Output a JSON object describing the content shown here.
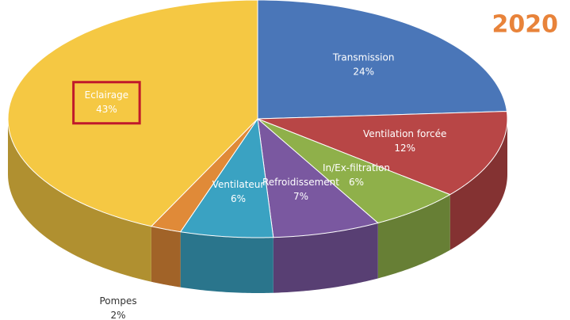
{
  "chart_data": {
    "type": "pie",
    "title": "2020",
    "categories": [
      "Transmission",
      "Ventilation forcée",
      "In/Ex-filtration",
      "Refroidissement",
      "Ventilateur",
      "Pompes",
      "Eclairage"
    ],
    "values": [
      24,
      12,
      6,
      7,
      6,
      2,
      43
    ],
    "value_labels": [
      "24%",
      "12%",
      "6%",
      "7%",
      "6%",
      "2%",
      "43%"
    ],
    "colors": [
      "#4a76b8",
      "#b84646",
      "#8fb04a",
      "#7a58a0",
      "#3aa2c2",
      "#e08a38",
      "#f5c843"
    ]
  }
}
